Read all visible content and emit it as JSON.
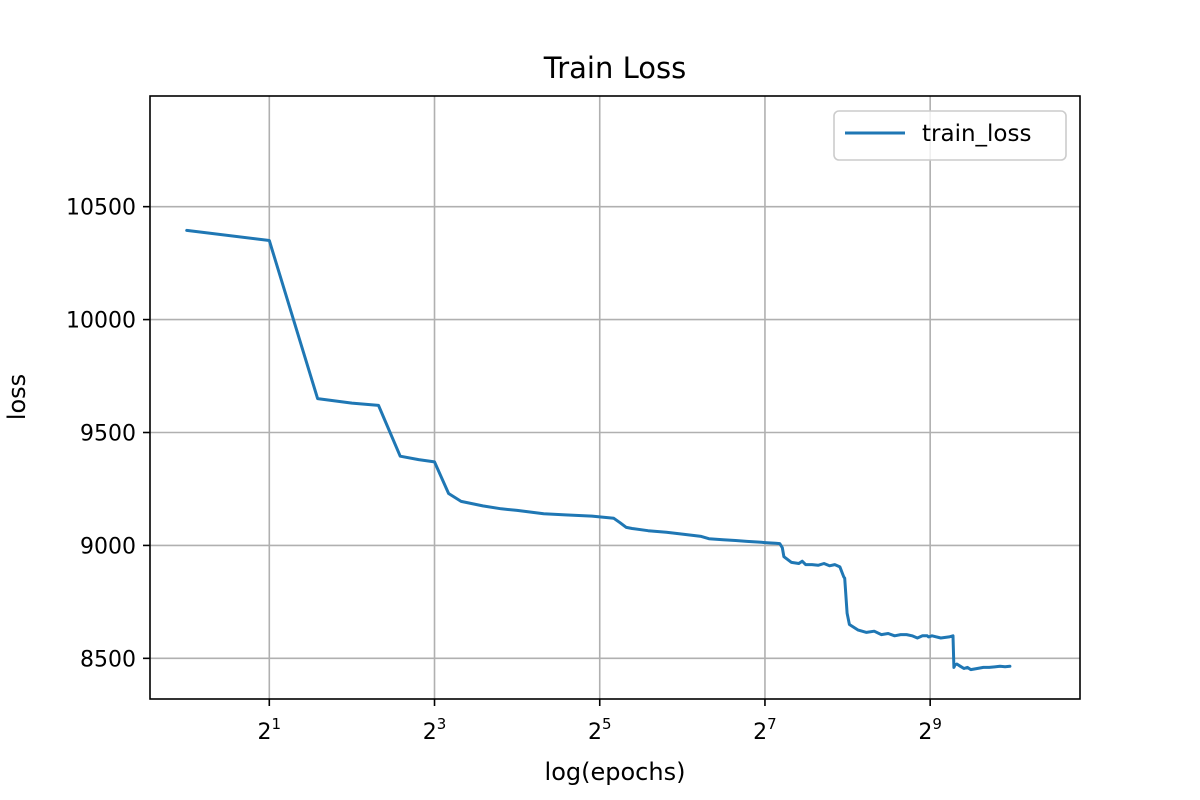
{
  "chart_data": {
    "type": "line",
    "title": "Train Loss",
    "xlabel": "log(epochs)",
    "ylabel": "loss",
    "xscale": "log2",
    "xlim": [
      0.735,
      1800
    ],
    "ylim": [
      8320,
      10990
    ],
    "grid": true,
    "legend_position": "top-right",
    "x_ticks": [
      {
        "value": 2,
        "base": "2",
        "exp": "1"
      },
      {
        "value": 8,
        "base": "2",
        "exp": "3"
      },
      {
        "value": 32,
        "base": "2",
        "exp": "5"
      },
      {
        "value": 128,
        "base": "2",
        "exp": "7"
      },
      {
        "value": 512,
        "base": "2",
        "exp": "9"
      }
    ],
    "y_ticks": [
      {
        "value": 8500,
        "label": "8500"
      },
      {
        "value": 9000,
        "label": "9000"
      },
      {
        "value": 9500,
        "label": "9500"
      },
      {
        "value": 10000,
        "label": "10000"
      },
      {
        "value": 10500,
        "label": "10500"
      }
    ],
    "series": [
      {
        "name": "train_loss",
        "color": "#1f77b4",
        "x": [
          1,
          2,
          3,
          4,
          5,
          6,
          7,
          8,
          9,
          10,
          12,
          14,
          16,
          20,
          24,
          30,
          36,
          38,
          40,
          42,
          48,
          56,
          64,
          75,
          80,
          90,
          100,
          110,
          120,
          130,
          140,
          145,
          148,
          150,
          160,
          170,
          175,
          180,
          190,
          200,
          210,
          220,
          230,
          240,
          248,
          250,
          255,
          260,
          280,
          300,
          320,
          340,
          360,
          380,
          400,
          420,
          440,
          460,
          480,
          500,
          505,
          520,
          560,
          600,
          620,
          625,
          630,
          640,
          660,
          680,
          700,
          720,
          760,
          800,
          840,
          880,
          920,
          960,
          1000
        ],
        "y": [
          10395,
          10350,
          9650,
          9630,
          9620,
          9395,
          9380,
          9370,
          9230,
          9195,
          9175,
          9162,
          9155,
          9140,
          9135,
          9130,
          9120,
          9100,
          9080,
          9075,
          9065,
          9058,
          9050,
          9040,
          9030,
          9025,
          9022,
          9018,
          9015,
          9012,
          9010,
          9008,
          8990,
          8950,
          8925,
          8920,
          8930,
          8915,
          8915,
          8912,
          8920,
          8910,
          8915,
          8905,
          8860,
          8855,
          8700,
          8650,
          8625,
          8615,
          8620,
          8605,
          8610,
          8600,
          8605,
          8605,
          8600,
          8590,
          8600,
          8600,
          8595,
          8600,
          8590,
          8595,
          8600,
          8460,
          8470,
          8475,
          8465,
          8455,
          8460,
          8450,
          8455,
          8460,
          8460,
          8462,
          8465,
          8463,
          8465
        ]
      }
    ]
  }
}
